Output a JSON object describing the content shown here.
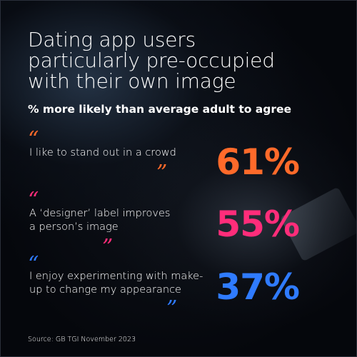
{
  "title_lines": [
    "Dating app users",
    "particularly pre-occupied",
    "with their own image"
  ],
  "subtitle": "% more likely than average adult to agree",
  "quote_open": "“",
  "quote_close": "”",
  "source": "Source: GB TGI November 2023",
  "colors": {
    "background": "#05070c",
    "orange": "#ff6a2a",
    "pink": "#ff2d7a",
    "blue": "#2f7bff",
    "text": "#ffffff"
  },
  "chart_data": {
    "type": "table",
    "title": "Dating app users particularly pre-occupied with their own image",
    "subtitle": "% more likely than average adult to agree",
    "rows": [
      {
        "statement_lines": [
          "I like to stand out in a crowd"
        ],
        "label": "61%",
        "value": 61,
        "color": "#ff6a2a"
      },
      {
        "statement_lines": [
          "A ‘designer’ label improves",
          "a person’s image"
        ],
        "label": "55%",
        "value": 55,
        "color": "#ff2d7a"
      },
      {
        "statement_lines": [
          "I enjoy experimenting with make-",
          "up to change my appearance"
        ],
        "label": "37%",
        "value": 37,
        "color": "#2f7bff"
      }
    ]
  }
}
